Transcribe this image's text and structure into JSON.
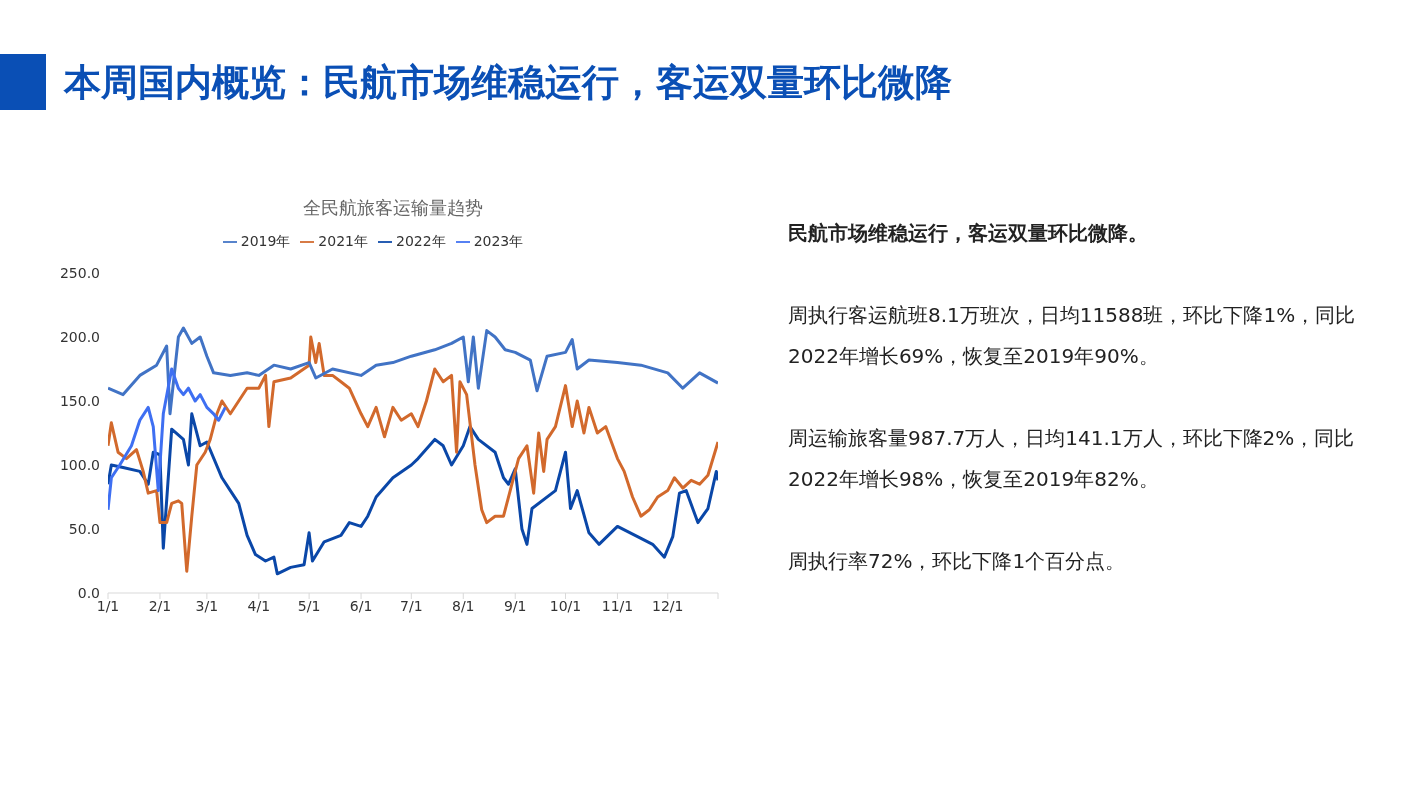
{
  "chart_data": {
    "type": "line",
    "title": "全民航旅客运输量趋势",
    "annotations": [
      "本周国内概览：民航市场维稳运行，客运双量环比微降",
      "民航市场维稳运行，客运双量环比微降。",
      "周执行客运航班8.1万班次，日均11588班，环比下降1%，同比2022年增长69%，恢复至2019年90%。",
      "周运输旅客量987.7万人，日均141.1万人，环比下降2%，同比2022年增长98%，恢复至2019年82%。",
      "周执行率72%，环比下降1个百分点。"
    ],
    "xlim": [
      "--01-01",
      "--12-31"
    ],
    "xticks": [
      {
        "value": "--01-01",
        "label": "1/1"
      },
      {
        "value": "--02-01",
        "label": "2/1"
      },
      {
        "value": "--03-01",
        "label": "3/1"
      },
      {
        "value": "--04-01",
        "label": "4/1"
      },
      {
        "value": "--05-01",
        "label": "5/1"
      },
      {
        "value": "--06-01",
        "label": "6/1"
      },
      {
        "value": "--07-01",
        "label": "7/1"
      },
      {
        "value": "--08-01",
        "label": "8/1"
      },
      {
        "value": "--09-01",
        "label": "9/1"
      },
      {
        "value": "--10-01",
        "label": "10/1"
      },
      {
        "value": "--11-01",
        "label": "11/1"
      },
      {
        "value": "--12-01",
        "label": "12/1"
      },
      {
        "value": "--12-31",
        "label": null
      }
    ],
    "ylim": [
      0,
      250
    ],
    "yticks": [
      {
        "value": 0,
        "label": "0.0"
      },
      {
        "value": 50,
        "label": "50.0"
      },
      {
        "value": 100,
        "label": "100.0"
      },
      {
        "value": 150,
        "label": "150.0"
      },
      {
        "value": 200,
        "label": "200.0"
      },
      {
        "value": 250,
        "label": "250.0"
      }
    ],
    "grid": false,
    "legend": "top",
    "marker": "none",
    "line_style": "solid",
    "series": [
      {
        "name": "2022年",
        "color": "#0a47a8",
        "x": [
          "--01-01",
          "--01-03",
          "--01-10",
          "--01-20",
          "--01-25",
          "--01-28",
          "--02-01",
          "--02-03",
          "--02-08",
          "--02-15",
          "--02-18",
          "--02-20",
          "--02-25",
          "--03-01",
          "--03-10",
          "--03-15",
          "--03-20",
          "--03-25",
          "--03-30",
          "--04-05",
          "--04-10",
          "--04-12",
          "--04-20",
          "--04-28",
          "--05-01",
          "--05-03",
          "--05-10",
          "--05-20",
          "--05-25",
          "--06-01",
          "--06-05",
          "--06-10",
          "--06-20",
          "--07-01",
          "--07-05",
          "--07-15",
          "--07-20",
          "--07-25",
          "--08-01",
          "--08-05",
          "--08-10",
          "--08-20",
          "--08-25",
          "--08-28",
          "--09-01",
          "--09-05",
          "--09-08",
          "--09-11",
          "--09-25",
          "--10-01",
          "--10-04",
          "--10-08",
          "--10-15",
          "--10-21",
          "--11-01",
          "--11-13",
          "--11-22",
          "--11-29",
          "--12-04",
          "--12-08",
          "--12-12",
          "--12-19",
          "--12-25",
          "--12-30",
          "--12-31"
        ],
        "values": [
          85,
          100,
          98,
          95,
          85,
          110,
          108,
          35,
          128,
          120,
          100,
          140,
          115,
          118,
          90,
          80,
          70,
          45,
          30,
          25,
          28,
          15,
          20,
          22,
          47,
          25,
          40,
          45,
          55,
          52,
          60,
          75,
          90,
          100,
          105,
          120,
          115,
          100,
          115,
          130,
          120,
          110,
          90,
          85,
          97,
          50,
          38,
          66,
          80,
          110,
          66,
          80,
          47,
          38,
          52,
          44,
          38,
          28,
          44,
          78,
          80,
          55,
          66,
          95,
          88
        ]
      },
      {
        "name": "2021年",
        "color": "#d2692c",
        "x": [
          "--01-01",
          "--01-03",
          "--01-07",
          "--01-12",
          "--01-18",
          "--01-22",
          "--01-25",
          "--01-30",
          "--02-01",
          "--02-05",
          "--02-08",
          "--02-12",
          "--02-14",
          "--02-17",
          "--02-20",
          "--02-23",
          "--02-28",
          "--03-03",
          "--03-07",
          "--03-10",
          "--03-15",
          "--03-20",
          "--03-25",
          "--04-01",
          "--04-05",
          "--04-07",
          "--04-10",
          "--04-20",
          "--05-01",
          "--05-02",
          "--05-05",
          "--05-07",
          "--05-10",
          "--05-15",
          "--05-20",
          "--05-25",
          "--06-01",
          "--06-05",
          "--06-10",
          "--06-15",
          "--06-20",
          "--06-25",
          "--07-01",
          "--07-05",
          "--07-10",
          "--07-15",
          "--07-20",
          "--07-25",
          "--07-28",
          "--07-30",
          "--08-03",
          "--08-08",
          "--08-12",
          "--08-15",
          "--08-20",
          "--08-25",
          "--08-30",
          "--09-03",
          "--09-08",
          "--09-12",
          "--09-15",
          "--09-18",
          "--09-20",
          "--09-25",
          "--10-01",
          "--10-05",
          "--10-08",
          "--10-12",
          "--10-15",
          "--10-20",
          "--10-25",
          "--11-01",
          "--11-05",
          "--11-10",
          "--11-15",
          "--11-20",
          "--11-25",
          "--12-01",
          "--12-05",
          "--12-10",
          "--12-15",
          "--12-20",
          "--12-25",
          "--12-31"
        ],
        "values": [
          115,
          133,
          110,
          105,
          112,
          95,
          78,
          80,
          55,
          55,
          70,
          72,
          70,
          17,
          60,
          100,
          110,
          120,
          140,
          150,
          140,
          150,
          160,
          160,
          170,
          130,
          165,
          168,
          178,
          200,
          180,
          195,
          170,
          170,
          165,
          160,
          140,
          130,
          145,
          122,
          145,
          135,
          140,
          130,
          150,
          175,
          165,
          170,
          110,
          165,
          155,
          100,
          65,
          55,
          60,
          60,
          85,
          105,
          115,
          78,
          125,
          95,
          120,
          130,
          162,
          130,
          150,
          125,
          145,
          125,
          130,
          105,
          95,
          75,
          60,
          65,
          75,
          80,
          90,
          82,
          88,
          85,
          92,
          118
        ]
      },
      {
        "name": "2019年",
        "color": "#4173c5",
        "x": [
          "--01-01",
          "--01-10",
          "--01-20",
          "--01-30",
          "--02-05",
          "--02-07",
          "--02-12",
          "--02-15",
          "--02-20",
          "--02-25",
          "--03-01",
          "--03-05",
          "--03-15",
          "--03-25",
          "--04-01",
          "--04-10",
          "--04-20",
          "--05-01",
          "--05-05",
          "--05-15",
          "--06-01",
          "--06-10",
          "--06-20",
          "--07-01",
          "--07-15",
          "--07-25",
          "--08-01",
          "--08-04",
          "--08-07",
          "--08-10",
          "--08-15",
          "--08-20",
          "--08-26",
          "--09-01",
          "--09-10",
          "--09-14",
          "--09-20",
          "--10-01",
          "--10-05",
          "--10-08",
          "--10-15",
          "--11-01",
          "--11-15",
          "--12-01",
          "--12-10",
          "--12-20",
          "--12-31"
        ],
        "values": [
          160,
          155,
          170,
          178,
          193,
          140,
          200,
          207,
          195,
          200,
          185,
          172,
          170,
          172,
          170,
          178,
          175,
          180,
          168,
          175,
          170,
          178,
          180,
          185,
          190,
          195,
          200,
          165,
          200,
          160,
          205,
          200,
          190,
          188,
          182,
          158,
          185,
          188,
          198,
          175,
          182,
          180,
          178,
          172,
          160,
          172,
          164
        ]
      },
      {
        "name": "2023年",
        "color": "#3e6ff2",
        "x": [
          "--01-01",
          "--01-03",
          "--01-08",
          "--01-15",
          "--01-20",
          "--01-25",
          "--01-28",
          "--01-31",
          "--02-03",
          "--02-08",
          "--02-12",
          "--02-15",
          "--02-18",
          "--02-22",
          "--02-25",
          "--03-01",
          "--03-05",
          "--03-08",
          "--03-12"
        ],
        "values": [
          65,
          90,
          100,
          115,
          135,
          145,
          130,
          80,
          140,
          175,
          160,
          155,
          160,
          150,
          155,
          145,
          140,
          135,
          145
        ]
      }
    ]
  }
}
